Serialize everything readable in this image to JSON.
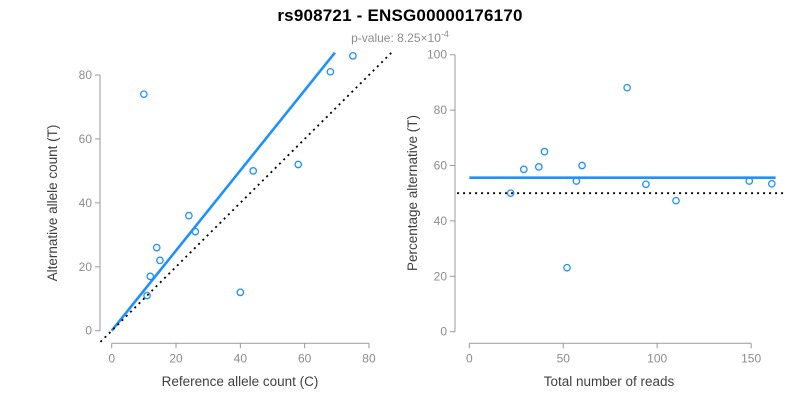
{
  "header": {
    "title": "rs908721 - ENSG00000176170",
    "pvalue_label": "p-value:",
    "pvalue_mantissa": "8.25×10",
    "pvalue_exponent": "-4"
  },
  "colors": {
    "accent_blue": "#1E90FF",
    "line_black": "#000000",
    "axis_gray": "#999999",
    "tick_text_gray": "#8c8c8c",
    "axis_label_dark": "#404040",
    "title_black": "#000000",
    "subtitle_gray": "#8c8c8c",
    "background": "#ffffff"
  },
  "chart_data": [
    {
      "type": "scatter",
      "xlabel": "Reference allele count (C)",
      "ylabel": "Alternative allele count (T)",
      "xlim": [
        -3.5,
        88
      ],
      "ylim": [
        -3.5,
        88
      ],
      "xticks": [
        0,
        20,
        40,
        60,
        80
      ],
      "yticks": [
        0,
        20,
        40,
        60,
        80
      ],
      "grid": false,
      "point_color": "#1E90FF",
      "points": [
        [
          10,
          74
        ],
        [
          11,
          11
        ],
        [
          12,
          17
        ],
        [
          14,
          26
        ],
        [
          15,
          22
        ],
        [
          24,
          36
        ],
        [
          26,
          31
        ],
        [
          40,
          12
        ],
        [
          44,
          50
        ],
        [
          58,
          52
        ],
        [
          68,
          81
        ],
        [
          75,
          86
        ]
      ],
      "lines": [
        {
          "name": "fit-line",
          "x1": 0,
          "y1": 0,
          "x2": 69.4,
          "y2": 87,
          "style": "solid",
          "color": "#1E90FF",
          "width": 2.6,
          "slope": 1.254,
          "intercept": 0
        },
        {
          "name": "identity-line",
          "x1": -3.5,
          "y1": -3.5,
          "x2": 87,
          "y2": 87,
          "style": "dotted",
          "color": "#000000",
          "width": 1.8,
          "slope": 1,
          "intercept": 0
        }
      ]
    },
    {
      "type": "scatter",
      "xlabel": "Total number of reads",
      "ylabel": "Percentage alternative (T)",
      "xlim": [
        -6.5,
        168
      ],
      "ylim": [
        -4,
        104
      ],
      "xticks": [
        0,
        50,
        100,
        150
      ],
      "yticks": [
        0,
        20,
        40,
        60,
        80,
        100
      ],
      "grid": false,
      "point_color": "#1E90FF",
      "points": [
        [
          22,
          50
        ],
        [
          29,
          58.6
        ],
        [
          37,
          59.5
        ],
        [
          40,
          65
        ],
        [
          52,
          23.1
        ],
        [
          57,
          54.4
        ],
        [
          60,
          60
        ],
        [
          84,
          88.1
        ],
        [
          94,
          53.2
        ],
        [
          110,
          47.3
        ],
        [
          149,
          54.4
        ],
        [
          161,
          53.4
        ]
      ],
      "lines": [
        {
          "name": "mean-percentage-line",
          "x1": 0,
          "y1": 55.6,
          "x2": 163,
          "y2": 55.6,
          "style": "solid",
          "color": "#1E90FF",
          "width": 2.6,
          "slope": 0,
          "intercept": 55.6
        },
        {
          "name": "fifty-percent-line",
          "x1": -6.5,
          "y1": 50,
          "x2": 168,
          "y2": 50,
          "style": "dotted",
          "color": "#000000",
          "width": 1.8,
          "slope": 0,
          "intercept": 50
        }
      ]
    }
  ]
}
